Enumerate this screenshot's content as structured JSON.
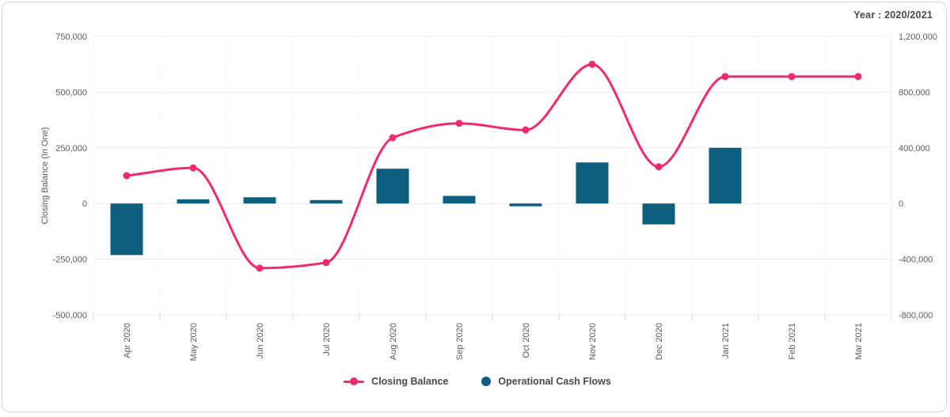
{
  "caption": "Year : 2020/2021",
  "colors": {
    "line": "#F2296B",
    "bar": "#0E5F7F",
    "h_grid": "#EBEBEB",
    "v_grid": "#DCDCDC",
    "tick": "#D4D4D4",
    "axis_text": "#5A5A5A",
    "caption_text": "#4A4A4A",
    "border": "#D6D6D6"
  },
  "chart_data": {
    "type": "combo-line-bar",
    "title": "",
    "caption": "Year : 2020/2021",
    "categories": [
      "Apr 2020",
      "May 2020",
      "Jun 2020",
      "Jul 2020",
      "Aug 2020",
      "Sep 2020",
      "Oct 2020",
      "Nov 2020",
      "Dec 2020",
      "Jan 2021",
      "Feb 2021",
      "Mar 2021"
    ],
    "series": [
      {
        "name": "Closing Balance",
        "type": "line",
        "axis": "left",
        "color": "#F2296B",
        "values": [
          125000,
          160000,
          -290000,
          -265000,
          295000,
          360000,
          330000,
          625000,
          165000,
          570000,
          570000,
          570000
        ]
      },
      {
        "name": "Operational Cash Flows",
        "type": "bar",
        "axis": "right",
        "color": "#0E5F7F",
        "values": [
          -370000,
          30000,
          45000,
          25000,
          250000,
          55000,
          -20000,
          295000,
          -150000,
          400000,
          0,
          0
        ]
      }
    ],
    "left_axis": {
      "title": "Closing Balance (In One)",
      "min": -500000,
      "max": 750000,
      "ticks": [
        750000,
        500000,
        250000,
        0,
        -250000,
        -500000
      ],
      "tick_labels": [
        "750,000",
        "500,000",
        "250,000",
        "0",
        "-250,000",
        "-500,000"
      ]
    },
    "right_axis": {
      "title": "",
      "min": -800000,
      "max": 1200000,
      "ticks": [
        1200000,
        800000,
        400000,
        0,
        -400000,
        -800000
      ],
      "tick_labels": [
        "1,200,000",
        "800,000",
        "400,000",
        "0",
        "-400,000",
        "-800,000"
      ]
    },
    "grid": true,
    "legend_position": "bottom"
  },
  "legend": {
    "items": [
      {
        "label": "Closing Balance",
        "color": "#F2296B",
        "shape": "line-dot"
      },
      {
        "label": "Operational Cash Flows",
        "color": "#0E5F7F",
        "shape": "circle"
      }
    ]
  }
}
